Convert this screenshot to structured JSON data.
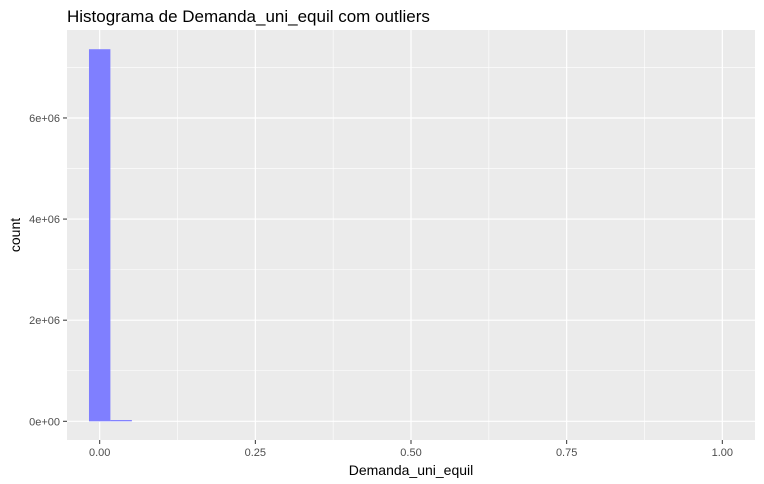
{
  "chart_data": {
    "type": "bar",
    "title": "Histograma de Demanda_uni_equil com outliers",
    "xlabel": "Demanda_uni_equil",
    "ylabel": "count",
    "xlim": [
      -0.0525,
      1.0525
    ],
    "ylim": [
      -370000,
      7740000
    ],
    "x_ticks": [
      {
        "value": 0,
        "label": "0.00"
      },
      {
        "value": 0.25,
        "label": "0.25"
      },
      {
        "value": 0.5,
        "label": "0.50"
      },
      {
        "value": 0.75,
        "label": "0.75"
      },
      {
        "value": 1.0,
        "label": "1.00"
      }
    ],
    "y_ticks": [
      {
        "value": 0,
        "label": "0e+00"
      },
      {
        "value": 2000000,
        "label": "2e+06"
      },
      {
        "value": 4000000,
        "label": "4e+06"
      },
      {
        "value": 6000000,
        "label": "6e+06"
      }
    ],
    "bins": [
      {
        "x0": -0.0172,
        "x1": 0.0172,
        "count": 7360000
      },
      {
        "x0": 0.0172,
        "x1": 0.0517,
        "count": 25000
      }
    ],
    "bar_color": "#7f7fff",
    "panel_background": "#ebebeb",
    "grid": true,
    "grid_color": "#ffffff"
  }
}
